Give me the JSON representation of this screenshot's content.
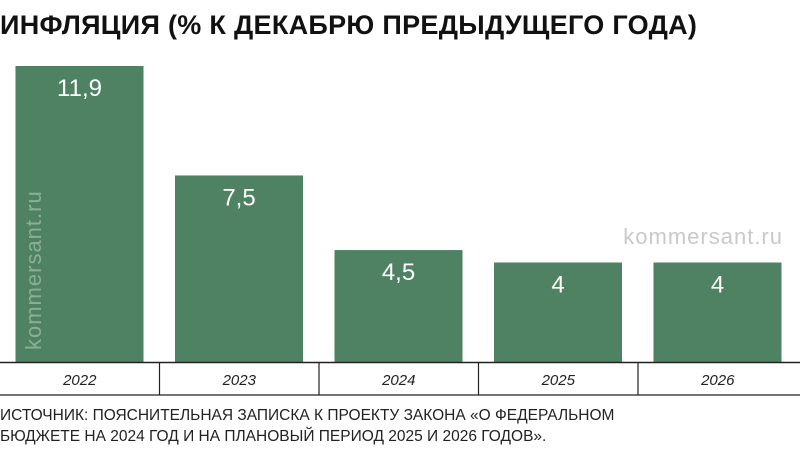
{
  "title": "ИНФЛЯЦИЯ (% К ДЕКАБРЮ ПРЕДЫДУЩЕГО ГОДА)",
  "source_lines": [
    "ИСТОЧНИК: ПОЯСНИТЕЛЬНАЯ ЗАПИСКА К ПРОЕКТУ ЗАКОНА «О ФЕДЕРАЛЬНОМ",
    "БЮДЖЕТЕ НА 2024 ГОД И НА ПЛАНОВЫЙ ПЕРИОД 2025 И 2026 ГОДОВ»."
  ],
  "watermark": "kommersant.ru",
  "colors": {
    "bar": "#4e8262",
    "value_text": "#ffffff",
    "watermark": "#c9c9c9",
    "axis": "#222222"
  },
  "chart_data": {
    "type": "bar",
    "title": "ИНФЛЯЦИЯ (% К ДЕКАБРЮ ПРЕДЫДУЩЕГО ГОДА)",
    "categories": [
      "2022",
      "2023",
      "2024",
      "2025",
      "2026"
    ],
    "values": [
      11.9,
      7.5,
      4.5,
      4,
      4
    ],
    "value_labels": [
      "11,9",
      "7,5",
      "4,5",
      "4",
      "4"
    ],
    "ylim": [
      0,
      11.9
    ],
    "grid": false,
    "legend": "none"
  }
}
